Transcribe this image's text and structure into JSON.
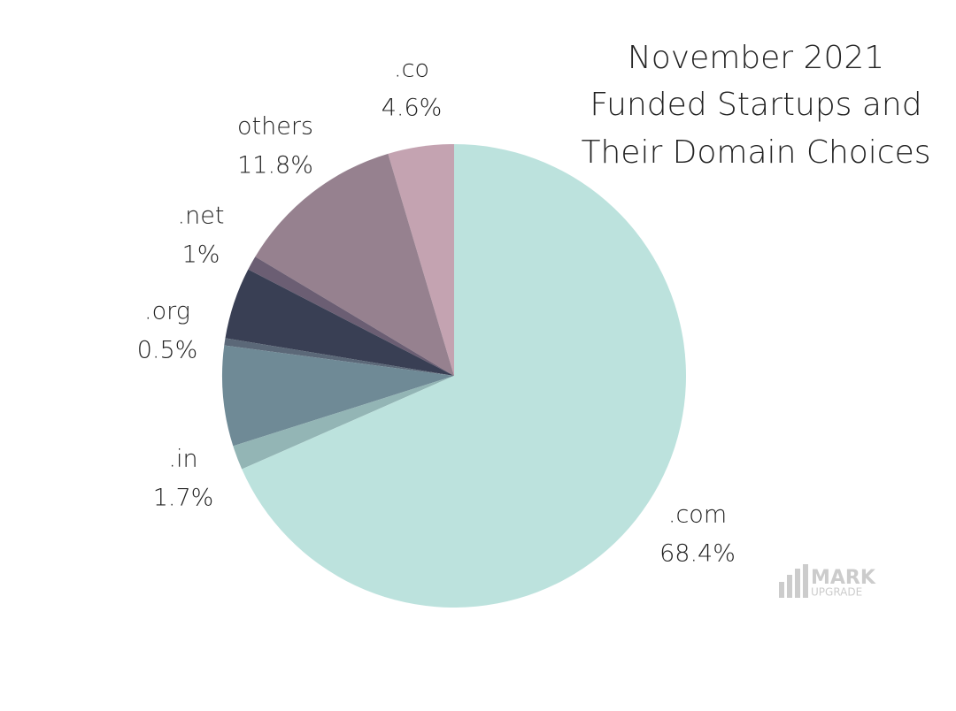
{
  "chart_data": {
    "type": "pie",
    "title": [
      "November 2021",
      "Funded Startups and",
      "Their Domain Choices"
    ],
    "categories": [
      ".com",
      ".in",
      null,
      ".org",
      null,
      ".net",
      "others",
      ".co"
    ],
    "values": [
      68.4,
      1.7,
      7.0,
      0.5,
      5.0,
      1,
      11.8,
      4.6
    ],
    "value_labels": [
      "68.4%",
      "1.7%",
      null,
      "0.5%",
      null,
      "1%",
      "11.8%",
      "4.6%"
    ],
    "colors": [
      "#bce2dd",
      "#93b5b5",
      "#6f8a96",
      "#5b6878",
      "#393f54",
      "#6b5e73",
      "#96818f",
      "#c4a3b1"
    ],
    "watermark": [
      "MARK",
      "UPGRADE"
    ]
  }
}
